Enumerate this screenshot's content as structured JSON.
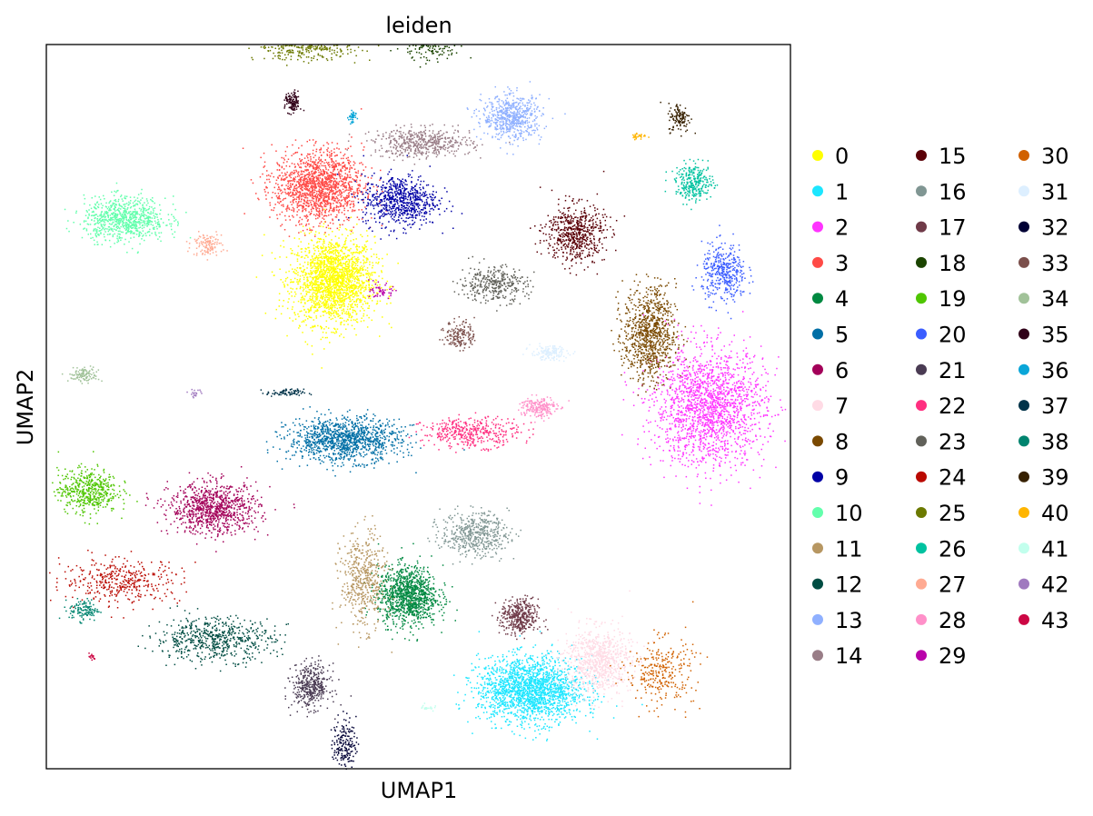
{
  "chart_data": {
    "type": "scatter",
    "title": "leiden",
    "xlabel": "UMAP1",
    "ylabel": "UMAP2",
    "xlim": [
      -8,
      12
    ],
    "ylim": [
      -8,
      12
    ],
    "ticks": false,
    "grid": false,
    "legend_position": "right",
    "legend_columns": 3,
    "clusters": [
      {
        "name": "0",
        "color": "#ffff00",
        "center": [
          -0.3,
          5.5
        ],
        "spread": [
          1.1,
          1.2
        ],
        "n": 2000
      },
      {
        "name": "1",
        "color": "#1ce6ff",
        "center": [
          5.0,
          -5.8
        ],
        "spread": [
          1.4,
          0.9
        ],
        "n": 1900
      },
      {
        "name": "2",
        "color": "#ff34ff",
        "center": [
          9.8,
          2.0
        ],
        "spread": [
          1.5,
          1.6
        ],
        "n": 1800
      },
      {
        "name": "3",
        "color": "#ff4a46",
        "center": [
          -0.7,
          8.1
        ],
        "spread": [
          1.2,
          1.0
        ],
        "n": 1500
      },
      {
        "name": "4",
        "color": "#008941",
        "center": [
          1.7,
          -3.2
        ],
        "spread": [
          0.8,
          0.8
        ],
        "n": 1100
      },
      {
        "name": "5",
        "color": "#006fa6",
        "center": [
          0.0,
          1.1
        ],
        "spread": [
          1.5,
          0.6
        ],
        "n": 1200
      },
      {
        "name": "6",
        "color": "#a30059",
        "center": [
          -3.5,
          -0.8
        ],
        "spread": [
          1.2,
          0.7
        ],
        "n": 900
      },
      {
        "name": "7",
        "color": "#ffdbe5",
        "center": [
          6.8,
          -5.0
        ],
        "spread": [
          0.9,
          0.9
        ],
        "n": 800
      },
      {
        "name": "8",
        "color": "#7a4900",
        "center": [
          8.2,
          4.0
        ],
        "spread": [
          0.7,
          1.3
        ],
        "n": 900
      },
      {
        "name": "9",
        "color": "#0000a6",
        "center": [
          1.5,
          7.7
        ],
        "spread": [
          1.0,
          0.7
        ],
        "n": 700
      },
      {
        "name": "10",
        "color": "#63ffac",
        "center": [
          -5.9,
          7.2
        ],
        "spread": [
          1.1,
          0.6
        ],
        "n": 800
      },
      {
        "name": "11",
        "color": "#b79762",
        "center": [
          0.5,
          -2.8
        ],
        "spread": [
          0.6,
          1.3
        ],
        "n": 500
      },
      {
        "name": "12",
        "color": "#004d43",
        "center": [
          -3.5,
          -4.4
        ],
        "spread": [
          1.6,
          0.6
        ],
        "n": 600
      },
      {
        "name": "13",
        "color": "#8fb0ff",
        "center": [
          4.5,
          10.0
        ],
        "spread": [
          0.8,
          0.6
        ],
        "n": 600
      },
      {
        "name": "14",
        "color": "#997d87",
        "center": [
          2.1,
          9.3
        ],
        "spread": [
          1.3,
          0.4
        ],
        "n": 500
      },
      {
        "name": "15",
        "color": "#5a0007",
        "center": [
          6.2,
          6.8
        ],
        "spread": [
          0.8,
          0.8
        ],
        "n": 600
      },
      {
        "name": "16",
        "color": "#809693",
        "center": [
          3.5,
          -1.5
        ],
        "spread": [
          0.9,
          0.6
        ],
        "n": 500
      },
      {
        "name": "17",
        "color": "#6f3a48",
        "center": [
          4.7,
          -3.8
        ],
        "spread": [
          0.5,
          0.5
        ],
        "n": 400
      },
      {
        "name": "18",
        "color": "#1b4400",
        "center": [
          2.4,
          12.3
        ],
        "spread": [
          0.7,
          0.6
        ],
        "n": 500
      },
      {
        "name": "19",
        "color": "#4fc601",
        "center": [
          -6.9,
          -0.3
        ],
        "spread": [
          0.8,
          0.6
        ],
        "n": 500
      },
      {
        "name": "20",
        "color": "#3b5dff",
        "center": [
          10.2,
          5.7
        ],
        "spread": [
          0.6,
          0.8
        ],
        "n": 400
      },
      {
        "name": "21",
        "color": "#4a3b53",
        "center": [
          -0.9,
          -5.7
        ],
        "spread": [
          0.5,
          0.6
        ],
        "n": 400
      },
      {
        "name": "22",
        "color": "#ff2f80",
        "center": [
          3.4,
          1.3
        ],
        "spread": [
          1.3,
          0.4
        ],
        "n": 400
      },
      {
        "name": "23",
        "color": "#61615a",
        "center": [
          4.0,
          5.4
        ],
        "spread": [
          0.9,
          0.5
        ],
        "n": 350
      },
      {
        "name": "24",
        "color": "#ba0900",
        "center": [
          -6.0,
          -2.8
        ],
        "spread": [
          1.6,
          0.6
        ],
        "n": 400
      },
      {
        "name": "25",
        "color": "#6b7900",
        "center": [
          -1.0,
          12.0
        ],
        "spread": [
          1.4,
          0.4
        ],
        "n": 450
      },
      {
        "name": "26",
        "color": "#00c2a0",
        "center": [
          9.4,
          8.2
        ],
        "spread": [
          0.5,
          0.5
        ],
        "n": 300
      },
      {
        "name": "27",
        "color": "#ffaa92",
        "center": [
          -3.7,
          6.5
        ],
        "spread": [
          0.4,
          0.3
        ],
        "n": 120
      },
      {
        "name": "28",
        "color": "#ff90c9",
        "center": [
          5.2,
          2.0
        ],
        "spread": [
          0.5,
          0.3
        ],
        "n": 200
      },
      {
        "name": "29",
        "color": "#b903aa",
        "center": [
          1.0,
          5.2
        ],
        "spread": [
          0.3,
          0.2
        ],
        "n": 50
      },
      {
        "name": "30",
        "color": "#d16100",
        "center": [
          8.5,
          -5.3
        ],
        "spread": [
          0.9,
          0.9
        ],
        "n": 300
      },
      {
        "name": "31",
        "color": "#ddefff",
        "center": [
          5.5,
          3.5
        ],
        "spread": [
          0.5,
          0.2
        ],
        "n": 150
      },
      {
        "name": "32",
        "color": "#000035",
        "center": [
          0.0,
          -7.3
        ],
        "spread": [
          0.3,
          0.7
        ],
        "n": 180
      },
      {
        "name": "33",
        "color": "#7b4f4b",
        "center": [
          3.1,
          4.0
        ],
        "spread": [
          0.4,
          0.4
        ],
        "n": 160
      },
      {
        "name": "34",
        "color": "#a1c299",
        "center": [
          -7.0,
          2.9
        ],
        "spread": [
          0.4,
          0.2
        ],
        "n": 120
      },
      {
        "name": "35",
        "color": "#300018",
        "center": [
          -1.4,
          10.4
        ],
        "spread": [
          0.2,
          0.3
        ],
        "n": 120
      },
      {
        "name": "36",
        "color": "#0aa6d8",
        "center": [
          0.2,
          10.0
        ],
        "spread": [
          0.1,
          0.2
        ],
        "n": 40
      },
      {
        "name": "37",
        "color": "#013349",
        "center": [
          -1.6,
          2.4
        ],
        "spread": [
          0.5,
          0.1
        ],
        "n": 80
      },
      {
        "name": "38",
        "color": "#00846f",
        "center": [
          -7.0,
          -3.6
        ],
        "spread": [
          0.4,
          0.3
        ],
        "n": 120
      },
      {
        "name": "39",
        "color": "#372101",
        "center": [
          9.0,
          10.0
        ],
        "spread": [
          0.3,
          0.4
        ],
        "n": 120
      },
      {
        "name": "40",
        "color": "#ffb500",
        "center": [
          7.9,
          9.5
        ],
        "spread": [
          0.2,
          0.1
        ],
        "n": 30
      },
      {
        "name": "41",
        "color": "#c2ffed",
        "center": [
          2.2,
          -6.3
        ],
        "spread": [
          0.2,
          0.1
        ],
        "n": 20
      },
      {
        "name": "42",
        "color": "#a079bf",
        "center": [
          -4.0,
          2.4
        ],
        "spread": [
          0.2,
          0.1
        ],
        "n": 20
      },
      {
        "name": "43",
        "color": "#cc0744",
        "center": [
          -6.8,
          -4.9
        ],
        "spread": [
          0.1,
          0.1
        ],
        "n": 15
      }
    ]
  }
}
